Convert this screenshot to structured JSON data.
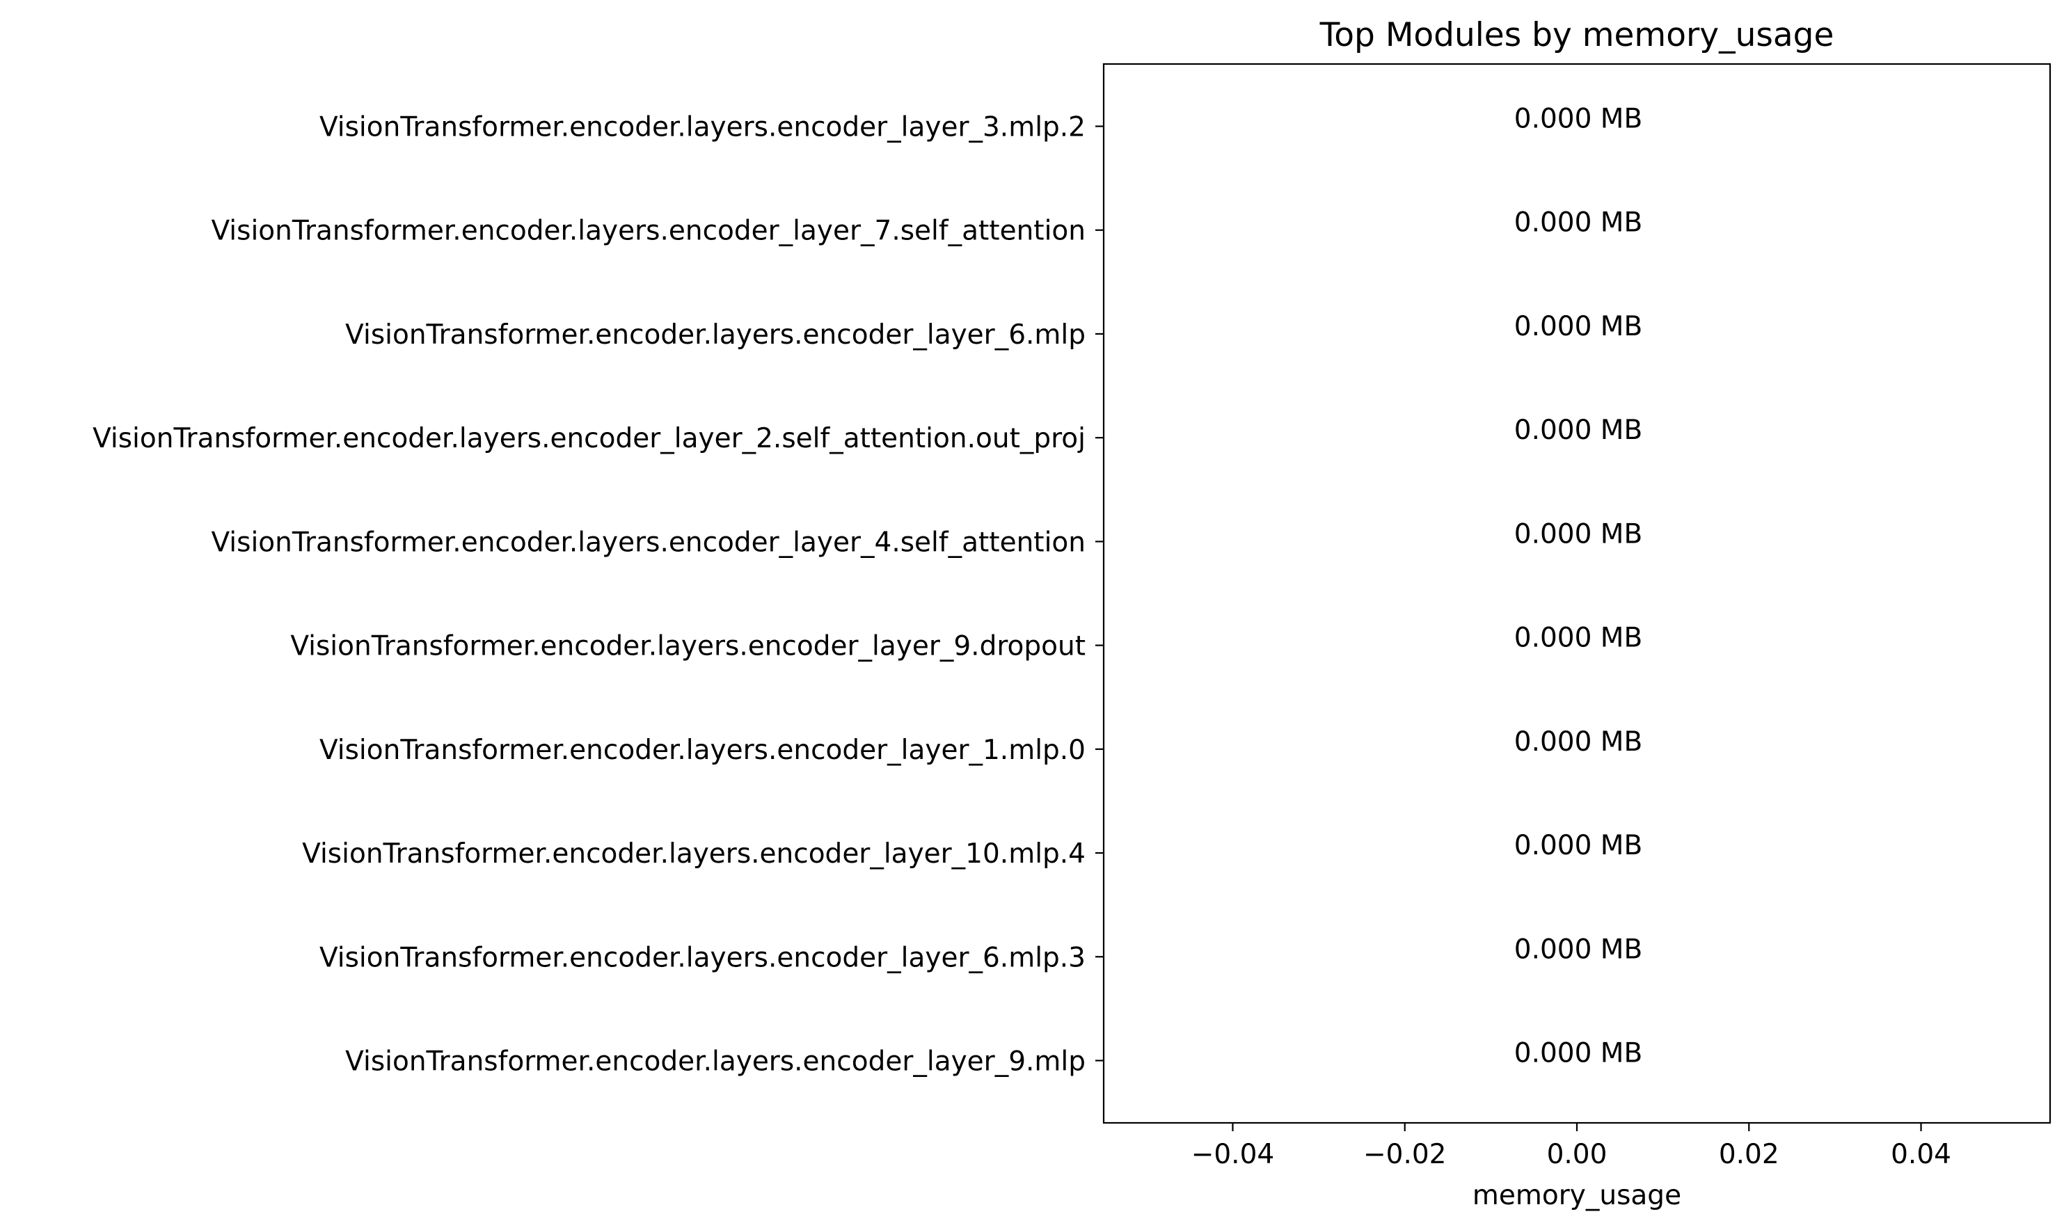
{
  "chart_data": {
    "type": "bar",
    "orientation": "horizontal",
    "title": "Top Modules by memory_usage",
    "xlabel": "memory_usage",
    "ylabel": "",
    "xlim": [
      -0.055,
      0.055
    ],
    "x_ticks": [
      -0.04,
      -0.02,
      0.0,
      0.02,
      0.04
    ],
    "x_tick_labels": [
      "−0.04",
      "−0.02",
      "0.00",
      "0.02",
      "0.04"
    ],
    "grid": false,
    "categories": [
      "VisionTransformer.encoder.layers.encoder_layer_3.mlp.2",
      "VisionTransformer.encoder.layers.encoder_layer_7.self_attention",
      "VisionTransformer.encoder.layers.encoder_layer_6.mlp",
      "VisionTransformer.encoder.layers.encoder_layer_2.self_attention.out_proj",
      "VisionTransformer.encoder.layers.encoder_layer_4.self_attention",
      "VisionTransformer.encoder.layers.encoder_layer_9.dropout",
      "VisionTransformer.encoder.layers.encoder_layer_1.mlp.0",
      "VisionTransformer.encoder.layers.encoder_layer_10.mlp.4",
      "VisionTransformer.encoder.layers.encoder_layer_6.mlp.3",
      "VisionTransformer.encoder.layers.encoder_layer_9.mlp"
    ],
    "values": [
      0,
      0,
      0,
      0,
      0,
      0,
      0,
      0,
      0,
      0
    ],
    "value_labels": [
      "0.000 MB",
      "0.000 MB",
      "0.000 MB",
      "0.000 MB",
      "0.000 MB",
      "0.000 MB",
      "0.000 MB",
      "0.000 MB",
      "0.000 MB",
      "0.000 MB"
    ],
    "colors": {
      "bar": "#1f77b4",
      "axis": "#000000",
      "text": "#000000",
      "background": "#ffffff"
    }
  }
}
